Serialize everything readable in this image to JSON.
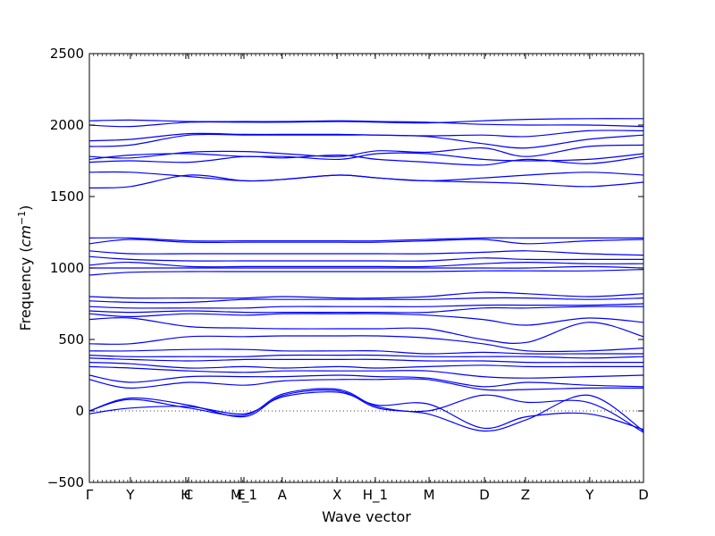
{
  "chart_data": {
    "type": "line",
    "xlabel": "Wave vector",
    "ylabel": "Frequency (cm^{-1})",
    "ylabel_main": "Frequency (",
    "ylabel_unit_base": "cm",
    "ylabel_unit_exp": "−1",
    "ylabel_close": ")",
    "ylim": [
      -500,
      2500
    ],
    "xlim": [
      0,
      1
    ],
    "y_ticks": [
      -500,
      0,
      500,
      1000,
      1500,
      2000,
      2500
    ],
    "y_tick_labels": [
      "−500",
      "0",
      "500",
      "1000",
      "1500",
      "2000",
      "2500"
    ],
    "x_ticks": [
      {
        "label": "Γ",
        "x": 0.0
      },
      {
        "label": "Y",
        "x": 0.074
      },
      {
        "label": "H",
        "x": 0.174
      },
      {
        "label": "C",
        "x": 0.179
      },
      {
        "label": "E",
        "x": 0.274
      },
      {
        "label": "M_1",
        "x": 0.279
      },
      {
        "label": "A",
        "x": 0.348
      },
      {
        "label": "X",
        "x": 0.447
      },
      {
        "label": "H_1",
        "x": 0.516
      },
      {
        "label": "M",
        "x": 0.613
      },
      {
        "label": "D",
        "x": 0.713
      },
      {
        "label": "Z",
        "x": 0.787
      },
      {
        "label": "Y",
        "x": 0.903
      },
      {
        "label": "D",
        "x": 1.0
      }
    ],
    "zero_line": 0,
    "line_color": "#0000ff",
    "series": [
      {
        "x": [
          0,
          0.074,
          0.18,
          0.28,
          0.35,
          0.45,
          0.52,
          0.61,
          0.71,
          0.79,
          0.9,
          1
        ],
        "y": [
          2000,
          1990,
          2020,
          2020,
          2020,
          2025,
          2020,
          2015,
          2030,
          2040,
          2045,
          2045
        ]
      },
      {
        "x": [
          0,
          0.074,
          0.18,
          0.28,
          0.35,
          0.45,
          0.52,
          0.61,
          0.71,
          0.79,
          0.9,
          1
        ],
        "y": [
          2030,
          2035,
          2025,
          2025,
          2025,
          2030,
          2025,
          2020,
          2005,
          2000,
          2000,
          1990
        ]
      },
      {
        "x": [
          0,
          0.074,
          0.18,
          0.28,
          0.35,
          0.45,
          0.52,
          0.61,
          0.71,
          0.79,
          0.9,
          1
        ],
        "y": [
          1890,
          1900,
          1940,
          1935,
          1935,
          1935,
          1930,
          1925,
          1930,
          1920,
          1960,
          1960
        ]
      },
      {
        "x": [
          0,
          0.074,
          0.18,
          0.28,
          0.35,
          0.45,
          0.52,
          0.61,
          0.71,
          0.79,
          0.9,
          1
        ],
        "y": [
          1850,
          1860,
          1930,
          1930,
          1930,
          1930,
          1930,
          1920,
          1870,
          1840,
          1900,
          1930
        ]
      },
      {
        "x": [
          0,
          0.074,
          0.18,
          0.28,
          0.35,
          0.45,
          0.52,
          0.61,
          0.71,
          0.79,
          0.9,
          1
        ],
        "y": [
          1780,
          1770,
          1810,
          1815,
          1800,
          1780,
          1820,
          1810,
          1840,
          1780,
          1850,
          1860
        ]
      },
      {
        "x": [
          0,
          0.074,
          0.18,
          0.28,
          0.35,
          0.45,
          0.52,
          0.61,
          0.71,
          0.79,
          0.9,
          1
        ],
        "y": [
          1760,
          1790,
          1800,
          1780,
          1780,
          1760,
          1800,
          1800,
          1760,
          1750,
          1760,
          1800
        ]
      },
      {
        "x": [
          0,
          0.074,
          0.18,
          0.28,
          0.35,
          0.45,
          0.52,
          0.61,
          0.71,
          0.79,
          0.9,
          1
        ],
        "y": [
          1740,
          1750,
          1740,
          1780,
          1770,
          1790,
          1760,
          1740,
          1720,
          1760,
          1730,
          1780
        ]
      },
      {
        "x": [
          0,
          0.074,
          0.18,
          0.28,
          0.35,
          0.45,
          0.52,
          0.61,
          0.71,
          0.79,
          0.9,
          1
        ],
        "y": [
          1670,
          1670,
          1640,
          1610,
          1620,
          1650,
          1630,
          1610,
          1630,
          1650,
          1670,
          1650
        ]
      },
      {
        "x": [
          0,
          0.074,
          0.18,
          0.28,
          0.35,
          0.45,
          0.52,
          0.61,
          0.71,
          0.79,
          0.9,
          1
        ],
        "y": [
          1560,
          1570,
          1650,
          1610,
          1620,
          1650,
          1630,
          1610,
          1600,
          1590,
          1570,
          1600
        ]
      },
      {
        "x": [
          0,
          0.074,
          0.18,
          0.28,
          0.35,
          0.45,
          0.52,
          0.61,
          0.71,
          0.79,
          0.9,
          1
        ],
        "y": [
          1210,
          1210,
          1190,
          1190,
          1190,
          1190,
          1190,
          1200,
          1210,
          1210,
          1210,
          1210
        ]
      },
      {
        "x": [
          0,
          0.074,
          0.18,
          0.28,
          0.35,
          0.45,
          0.52,
          0.61,
          0.71,
          0.79,
          0.9,
          1
        ],
        "y": [
          1170,
          1200,
          1180,
          1180,
          1180,
          1180,
          1180,
          1190,
          1200,
          1170,
          1190,
          1200
        ]
      },
      {
        "x": [
          0,
          0.074,
          0.18,
          0.28,
          0.35,
          0.45,
          0.52,
          0.61,
          0.71,
          0.79,
          0.9,
          1
        ],
        "y": [
          1120,
          1100,
          1100,
          1100,
          1100,
          1100,
          1100,
          1100,
          1110,
          1120,
          1100,
          1090
        ]
      },
      {
        "x": [
          0,
          0.074,
          0.18,
          0.28,
          0.35,
          0.45,
          0.52,
          0.61,
          0.71,
          0.79,
          0.9,
          1
        ],
        "y": [
          1080,
          1060,
          1050,
          1050,
          1050,
          1050,
          1050,
          1050,
          1070,
          1060,
          1060,
          1060
        ]
      },
      {
        "x": [
          0,
          0.074,
          0.18,
          0.28,
          0.35,
          0.45,
          0.52,
          0.61,
          0.71,
          0.79,
          0.9,
          1
        ],
        "y": [
          1020,
          1040,
          1010,
          1010,
          1010,
          1010,
          1010,
          1010,
          1030,
          1040,
          1030,
          1030
        ]
      },
      {
        "x": [
          0,
          0.074,
          0.18,
          0.28,
          0.35,
          0.45,
          0.52,
          0.61,
          0.71,
          0.79,
          0.9,
          1
        ],
        "y": [
          1000,
          1000,
          1000,
          1000,
          1000,
          1000,
          1000,
          1000,
          1000,
          1000,
          1010,
          1000
        ]
      },
      {
        "x": [
          0,
          0.074,
          0.18,
          0.28,
          0.35,
          0.45,
          0.52,
          0.61,
          0.71,
          0.79,
          0.9,
          1
        ],
        "y": [
          950,
          970,
          975,
          975,
          975,
          975,
          975,
          975,
          980,
          980,
          980,
          990
        ]
      },
      {
        "x": [
          0,
          0.074,
          0.18,
          0.28,
          0.35,
          0.45,
          0.52,
          0.61,
          0.71,
          0.79,
          0.9,
          1
        ],
        "y": [
          800,
          790,
          790,
          790,
          800,
          790,
          790,
          800,
          830,
          820,
          800,
          820
        ]
      },
      {
        "x": [
          0,
          0.074,
          0.18,
          0.28,
          0.35,
          0.45,
          0.52,
          0.61,
          0.71,
          0.79,
          0.9,
          1
        ],
        "y": [
          770,
          760,
          760,
          780,
          780,
          780,
          780,
          780,
          790,
          790,
          780,
          790
        ]
      },
      {
        "x": [
          0,
          0.074,
          0.18,
          0.28,
          0.35,
          0.45,
          0.52,
          0.61,
          0.71,
          0.79,
          0.9,
          1
        ],
        "y": [
          730,
          720,
          720,
          720,
          730,
          730,
          730,
          730,
          740,
          740,
          740,
          750
        ]
      },
      {
        "x": [
          0,
          0.074,
          0.18,
          0.28,
          0.35,
          0.45,
          0.52,
          0.61,
          0.71,
          0.79,
          0.9,
          1
        ],
        "y": [
          700,
          690,
          700,
          690,
          690,
          690,
          690,
          690,
          720,
          720,
          730,
          730
        ]
      },
      {
        "x": [
          0,
          0.074,
          0.18,
          0.28,
          0.35,
          0.45,
          0.52,
          0.61,
          0.71,
          0.79,
          0.9,
          1
        ],
        "y": [
          680,
          660,
          680,
          670,
          680,
          680,
          680,
          670,
          640,
          600,
          650,
          620
        ]
      },
      {
        "x": [
          0,
          0.074,
          0.18,
          0.28,
          0.35,
          0.45,
          0.52,
          0.61,
          0.71,
          0.79,
          0.9,
          1
        ],
        "y": [
          640,
          650,
          590,
          580,
          575,
          575,
          575,
          575,
          500,
          480,
          620,
          520
        ]
      },
      {
        "x": [
          0,
          0.074,
          0.18,
          0.28,
          0.35,
          0.45,
          0.52,
          0.61,
          0.71,
          0.79,
          0.9,
          1
        ],
        "y": [
          470,
          470,
          520,
          520,
          525,
          525,
          525,
          510,
          470,
          420,
          420,
          440
        ]
      },
      {
        "x": [
          0,
          0.074,
          0.18,
          0.28,
          0.35,
          0.45,
          0.52,
          0.61,
          0.71,
          0.79,
          0.9,
          1
        ],
        "y": [
          420,
          420,
          430,
          430,
          420,
          420,
          420,
          400,
          410,
          400,
          400,
          400
        ]
      },
      {
        "x": [
          0,
          0.074,
          0.18,
          0.28,
          0.35,
          0.45,
          0.52,
          0.61,
          0.71,
          0.79,
          0.9,
          1
        ],
        "y": [
          390,
          380,
          380,
          380,
          390,
          390,
          390,
          380,
          380,
          380,
          370,
          380
        ]
      },
      {
        "x": [
          0,
          0.074,
          0.18,
          0.28,
          0.35,
          0.45,
          0.52,
          0.61,
          0.71,
          0.79,
          0.9,
          1
        ],
        "y": [
          370,
          360,
          350,
          360,
          360,
          360,
          360,
          350,
          350,
          340,
          340,
          340
        ]
      },
      {
        "x": [
          0,
          0.074,
          0.18,
          0.28,
          0.35,
          0.45,
          0.52,
          0.61,
          0.71,
          0.79,
          0.9,
          1
        ],
        "y": [
          340,
          330,
          300,
          310,
          300,
          310,
          300,
          310,
          320,
          310,
          310,
          310
        ]
      },
      {
        "x": [
          0,
          0.074,
          0.18,
          0.28,
          0.35,
          0.45,
          0.52,
          0.61,
          0.71,
          0.79,
          0.9,
          1
        ],
        "y": [
          310,
          300,
          280,
          270,
          280,
          280,
          280,
          280,
          240,
          230,
          240,
          250
        ]
      },
      {
        "x": [
          0,
          0.074,
          0.18,
          0.28,
          0.35,
          0.45,
          0.52,
          0.61,
          0.71,
          0.79,
          0.9,
          1
        ],
        "y": [
          250,
          200,
          240,
          240,
          240,
          250,
          240,
          230,
          170,
          200,
          180,
          170
        ]
      },
      {
        "x": [
          0,
          0.074,
          0.18,
          0.28,
          0.35,
          0.45,
          0.52,
          0.61,
          0.71,
          0.79,
          0.9,
          1
        ],
        "y": [
          220,
          160,
          200,
          180,
          210,
          220,
          220,
          220,
          150,
          150,
          160,
          160
        ]
      },
      {
        "x": [
          0,
          0.074,
          0.18,
          0.28,
          0.35,
          0.45,
          0.52,
          0.61,
          0.71,
          0.79,
          0.9,
          1
        ],
        "y": [
          0,
          80,
          20,
          -30,
          120,
          150,
          30,
          0,
          110,
          60,
          60,
          -150
        ]
      },
      {
        "x": [
          0,
          0.074,
          0.18,
          0.28,
          0.35,
          0.45,
          0.52,
          0.61,
          0.71,
          0.79,
          0.9,
          1
        ],
        "y": [
          0,
          90,
          40,
          -40,
          110,
          140,
          20,
          -20,
          -140,
          -60,
          110,
          -140
        ]
      },
      {
        "x": [
          0,
          0.074,
          0.18,
          0.28,
          0.35,
          0.45,
          0.52,
          0.61,
          0.71,
          0.79,
          0.9,
          1
        ],
        "y": [
          -20,
          20,
          30,
          -20,
          100,
          130,
          40,
          50,
          -120,
          -40,
          -20,
          -130
        ]
      }
    ]
  }
}
